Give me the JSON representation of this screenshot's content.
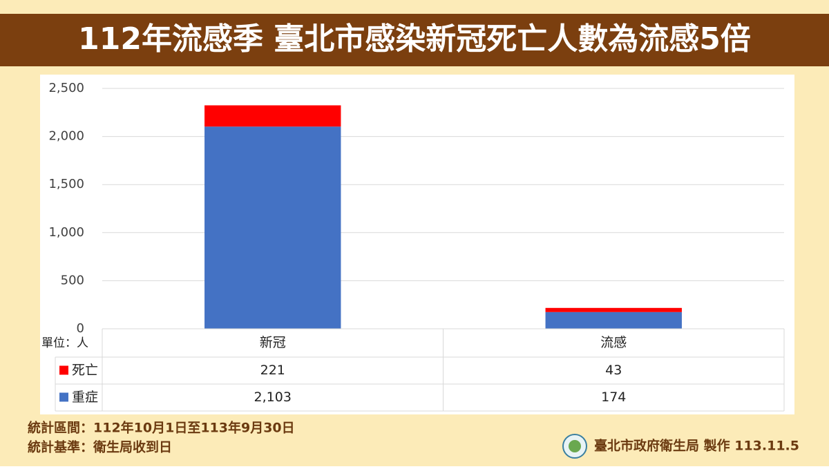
{
  "chart_data": {
    "type": "bar",
    "stacked": true,
    "title": "112年流感季 臺北市感染新冠死亡人數為流感5倍",
    "unit_label": "單位：人",
    "categories": [
      "新冠",
      "流感"
    ],
    "series": [
      {
        "name": "重症",
        "color": "#4472c4",
        "values": [
          2103,
          174
        ],
        "value_labels": [
          "2,103",
          "174"
        ]
      },
      {
        "name": "死亡",
        "color": "#ff0000",
        "values": [
          221,
          43
        ]
      }
    ],
    "ylim": [
      0,
      2500
    ],
    "yticks": [
      0,
      500,
      {
        "value": 1000,
        "label": "1,000"
      },
      {
        "value": 1500,
        "label": "1,500"
      },
      {
        "value": 2000,
        "label": "2,000"
      },
      {
        "value": 2500,
        "label": "2,500"
      }
    ],
    "grid": true,
    "notes": [
      "統計區間：112年10月1日至113年9月30日",
      "統計基準：衛生局收到日"
    ],
    "credit": "臺北市政府衛生局 製作 113.11.5"
  }
}
